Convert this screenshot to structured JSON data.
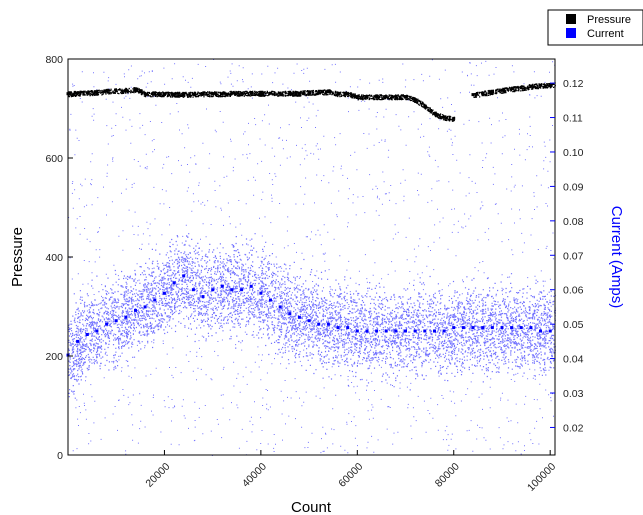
{
  "chart_data": {
    "type": "scatter",
    "x": [
      0,
      2000,
      4000,
      6000,
      8000,
      10000,
      12000,
      14000,
      16000,
      18000,
      20000,
      22000,
      24000,
      26000,
      28000,
      30000,
      32000,
      34000,
      36000,
      38000,
      40000,
      42000,
      44000,
      46000,
      48000,
      50000,
      52000,
      54000,
      56000,
      58000,
      60000,
      62000,
      64000,
      66000,
      68000,
      70000,
      72000,
      74000,
      76000,
      78000,
      80000,
      82000,
      84000,
      86000,
      88000,
      90000,
      92000,
      94000,
      96000,
      98000,
      100000
    ],
    "series": [
      {
        "name": "Pressure",
        "axis": "left",
        "color": "#000000",
        "values": [
          730,
          731,
          732,
          733,
          735,
          736,
          737,
          739,
          730,
          730,
          730,
          729,
          729,
          729,
          730,
          730,
          730,
          731,
          731,
          731,
          731,
          731,
          731,
          731,
          731,
          733,
          733,
          734,
          730,
          730,
          724,
          724,
          724,
          724,
          724,
          724,
          718,
          705,
          690,
          682,
          680,
          null,
          728,
          731,
          734,
          737,
          740,
          742,
          745,
          747,
          748
        ]
      },
      {
        "name": "Current",
        "axis": "right",
        "color": "#0000ff",
        "values": [
          0.041,
          0.045,
          0.047,
          0.048,
          0.05,
          0.051,
          0.052,
          0.054,
          0.055,
          0.057,
          0.059,
          0.062,
          0.064,
          0.06,
          0.058,
          0.06,
          0.061,
          0.06,
          0.06,
          0.061,
          0.059,
          0.057,
          0.055,
          0.053,
          0.052,
          0.051,
          0.05,
          0.05,
          0.049,
          0.049,
          0.048,
          0.048,
          0.048,
          0.048,
          0.048,
          0.048,
          0.048,
          0.048,
          0.048,
          0.048,
          0.049,
          0.049,
          0.049,
          0.049,
          0.049,
          0.049,
          0.049,
          0.049,
          0.049,
          0.048,
          0.048
        ]
      }
    ],
    "xlabel": "Count",
    "ylabel": "Pressure",
    "y2label": "Current (Amps)",
    "xlim": [
      0,
      101000
    ],
    "ylim": [
      0,
      800
    ],
    "y2lim": [
      0.012,
      0.127
    ],
    "xticks": [
      "20000",
      "40000",
      "60000",
      "80000",
      "100000"
    ],
    "yticks": [
      "0",
      "200",
      "400",
      "600",
      "800"
    ],
    "y2ticks": [
      "0.02",
      "0.03",
      "0.04",
      "0.05",
      "0.06",
      "0.07",
      "0.08",
      "0.09",
      "0.10",
      "0.11",
      "0.12"
    ],
    "legend_position": "top-right",
    "grid": false
  },
  "colors": {
    "left_axis": "#000000",
    "right_axis": "#0000ff"
  }
}
